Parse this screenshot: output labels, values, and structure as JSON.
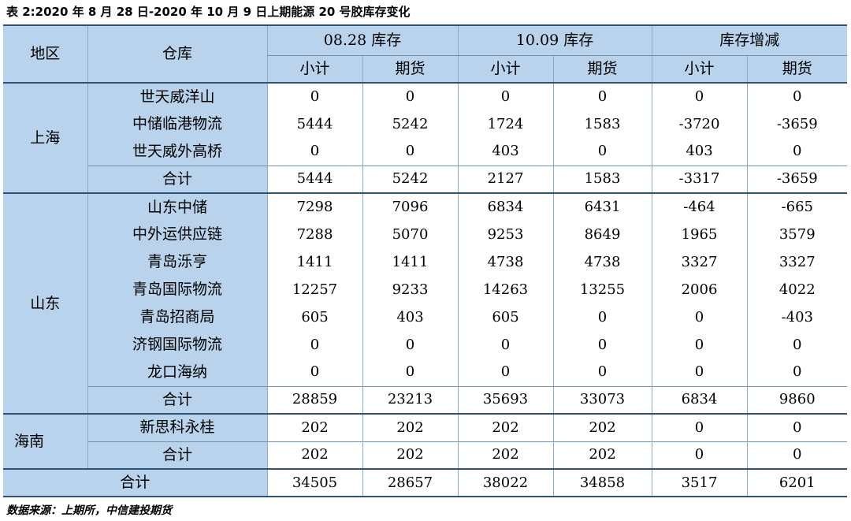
{
  "caption": "表 2:2020 年 8 月 28 日-2020 年 10 月 9 日上期能源 20 号胶库存变化",
  "source": "数据来源：上期所，中信建投期货",
  "header": {
    "region": "地区",
    "warehouse": "仓库",
    "groups": [
      "08.28 库存",
      "10.09 库存",
      "库存增减"
    ],
    "sub": [
      "小计",
      "期货",
      "小计",
      "期货",
      "小计",
      "期货"
    ]
  },
  "regions": [
    {
      "name": "上海",
      "rows": [
        {
          "warehouse": "世天威洋山",
          "values": [
            "0",
            "0",
            "0",
            "0",
            "0",
            "0"
          ]
        },
        {
          "warehouse": "中储临港物流",
          "values": [
            "5444",
            "5242",
            "1724",
            "1583",
            "-3720",
            "-3659"
          ]
        },
        {
          "warehouse": "世天威外高桥",
          "values": [
            "0",
            "0",
            "403",
            "0",
            "403",
            "0"
          ]
        }
      ],
      "subtotal": {
        "label": "合计",
        "values": [
          "5444",
          "5242",
          "2127",
          "1583",
          "-3317",
          "-3659"
        ]
      }
    },
    {
      "name": "山东",
      "rows": [
        {
          "warehouse": "山东中储",
          "values": [
            "7298",
            "7096",
            "6834",
            "6431",
            "-464",
            "-665"
          ]
        },
        {
          "warehouse": "中外运供应链",
          "values": [
            "7288",
            "5070",
            "9253",
            "8649",
            "1965",
            "3579"
          ]
        },
        {
          "warehouse": "青岛泺亨",
          "values": [
            "1411",
            "1411",
            "4738",
            "4738",
            "3327",
            "3327"
          ]
        },
        {
          "warehouse": "青岛国际物流",
          "values": [
            "12257",
            "9233",
            "14263",
            "13255",
            "2006",
            "4022"
          ]
        },
        {
          "warehouse": "青岛招商局",
          "values": [
            "605",
            "403",
            "605",
            "0",
            "0",
            "-403"
          ]
        },
        {
          "warehouse": "济钢国际物流",
          "values": [
            "0",
            "0",
            "0",
            "0",
            "0",
            "0"
          ]
        },
        {
          "warehouse": "龙口海纳",
          "values": [
            "0",
            "0",
            "0",
            "0",
            "0",
            "0"
          ]
        }
      ],
      "subtotal": {
        "label": "合计",
        "values": [
          "28859",
          "23213",
          "35693",
          "33073",
          "6834",
          "9860"
        ]
      }
    },
    {
      "name": "海南",
      "rows": [
        {
          "warehouse": "新思科永桂",
          "values": [
            "202",
            "202",
            "202",
            "202",
            "0",
            "0"
          ]
        }
      ],
      "subtotal": {
        "label": "合计",
        "values": [
          "202",
          "202",
          "202",
          "202",
          "0",
          "0"
        ]
      }
    }
  ],
  "total": {
    "label": "合计",
    "values": [
      "34505",
      "28657",
      "38022",
      "34858",
      "3517",
      "6201"
    ]
  },
  "colors": {
    "header_fill": "#b8d3eb",
    "rule": "#2f5376"
  }
}
